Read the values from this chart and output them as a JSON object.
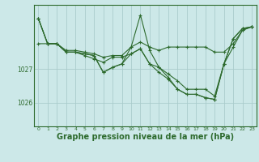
{
  "bg_color": "#cce8e8",
  "grid_color": "#aacccc",
  "line_color": "#2d6a2d",
  "xlabel": "Graphe pression niveau de la mer (hPa)",
  "xlabel_fontsize": 7.0,
  "ytick_labels": [
    "1027",
    "1026"
  ],
  "ytick_values": [
    1027.0,
    1026.0
  ],
  "ylim": [
    1025.3,
    1028.9
  ],
  "xlim": [
    -0.5,
    23.5
  ],
  "xtick_values": [
    0,
    1,
    2,
    3,
    4,
    5,
    6,
    7,
    8,
    9,
    10,
    11,
    12,
    13,
    14,
    15,
    16,
    17,
    18,
    19,
    20,
    21,
    22,
    23
  ],
  "series": [
    [
      1028.5,
      1027.75,
      1027.75,
      1027.55,
      1027.55,
      1027.5,
      1027.45,
      1027.35,
      1027.4,
      1027.4,
      1027.65,
      1027.8,
      1027.65,
      1027.55,
      1027.65,
      1027.65,
      1027.65,
      1027.65,
      1027.65,
      1027.5,
      1027.5,
      1027.75,
      1028.15,
      1028.25
    ],
    [
      1028.5,
      1027.75,
      1027.75,
      1027.5,
      1027.5,
      1027.45,
      1027.4,
      1026.9,
      1027.05,
      1027.15,
      1027.65,
      1028.6,
      1027.55,
      1027.05,
      1026.75,
      1026.4,
      1026.25,
      1026.25,
      1026.15,
      1026.1,
      1027.15,
      1027.9,
      1028.2,
      1028.25
    ],
    [
      1028.5,
      1027.75,
      1027.75,
      1027.5,
      1027.5,
      1027.45,
      1027.4,
      1026.9,
      1027.05,
      1027.15,
      1027.45,
      1027.6,
      1027.15,
      1026.9,
      1026.7,
      1026.4,
      1026.25,
      1026.25,
      1026.15,
      1026.1,
      1027.15,
      1027.9,
      1028.2,
      1028.25
    ],
    [
      1027.75,
      1027.75,
      1027.75,
      1027.5,
      1027.5,
      1027.4,
      1027.3,
      1027.2,
      1027.35,
      1027.35,
      1027.45,
      1027.6,
      1027.15,
      1027.05,
      1026.85,
      1026.65,
      1026.4,
      1026.4,
      1026.4,
      1026.2,
      1027.15,
      1027.65,
      1028.15,
      1028.25
    ]
  ]
}
